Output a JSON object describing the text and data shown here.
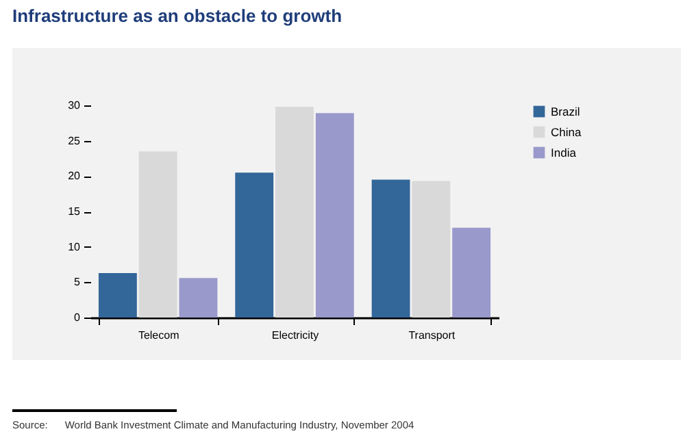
{
  "chart_data": {
    "type": "bar",
    "title": "Infrastructure as an obstacle to growth",
    "categories": [
      "Telecom",
      "Electricity",
      "Transport"
    ],
    "series": [
      {
        "name": "Brazil",
        "color": "#336699",
        "values": [
          6.3,
          20.5,
          19.5
        ]
      },
      {
        "name": "China",
        "color": "#d9d9d9",
        "values": [
          23.5,
          29.8,
          19.3
        ]
      },
      {
        "name": "India",
        "color": "#9999cc",
        "values": [
          5.6,
          28.9,
          12.7
        ]
      }
    ],
    "ylim": [
      0,
      30
    ],
    "yticks": [
      0,
      5,
      10,
      15,
      20,
      25,
      30
    ],
    "grid": false,
    "legend": "top right",
    "annotations": [
      "Source:      World Bank Investment Climate and Manufacturing Industry, November 2004"
    ]
  }
}
